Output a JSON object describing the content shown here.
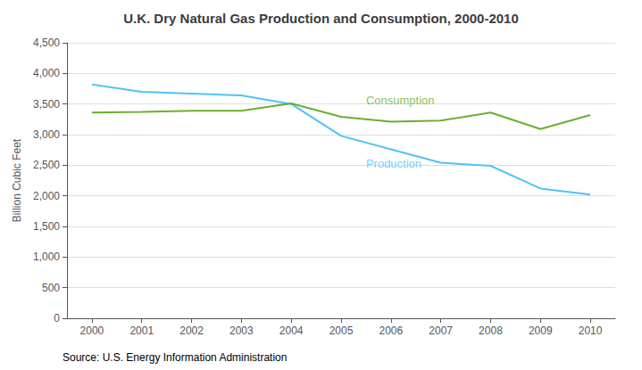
{
  "chart_data": {
    "type": "line",
    "title": "U.K. Dry Natural Gas Production and Consumption, 2000-2010",
    "ylabel": "Billion Cubic Feet",
    "source": "Source: U.S. Energy Information Administration",
    "x": [
      2000,
      2001,
      2002,
      2003,
      2004,
      2005,
      2006,
      2007,
      2008,
      2009,
      2010
    ],
    "series": [
      {
        "name": "Production",
        "color": "#4FC3F7",
        "values": [
          3820,
          3700,
          3670,
          3640,
          3500,
          2980,
          2760,
          2540,
          2490,
          2120,
          2020
        ]
      },
      {
        "name": "Consumption",
        "color": "#6AAF2E",
        "values": [
          3360,
          3370,
          3390,
          3390,
          3510,
          3290,
          3210,
          3230,
          3360,
          3090,
          3320
        ]
      }
    ],
    "annotations": [
      {
        "text": "Consumption",
        "x": 2005.5,
        "y": 3430,
        "color": "#6AAF2E"
      },
      {
        "text": "Production",
        "x": 2005.5,
        "y": 2400,
        "color": "#4FC3F7"
      }
    ],
    "xlim": [
      1999.5,
      2010.5
    ],
    "xticks": [
      2000,
      2001,
      2002,
      2003,
      2004,
      2005,
      2006,
      2007,
      2008,
      2009,
      2010
    ],
    "ylim": [
      0,
      4500
    ],
    "yticks": [
      0,
      500,
      {
        "value": 1000,
        "label": "1,000"
      },
      {
        "value": 1500,
        "label": "1,500"
      },
      {
        "value": 2000,
        "label": "2,000"
      },
      {
        "value": 2500,
        "label": "2,500"
      },
      {
        "value": 3000,
        "label": "3,000"
      },
      {
        "value": 3500,
        "label": "3,500"
      },
      {
        "value": 4000,
        "label": "4,000"
      },
      {
        "value": 4500,
        "label": "4,500"
      }
    ],
    "grid": true
  }
}
